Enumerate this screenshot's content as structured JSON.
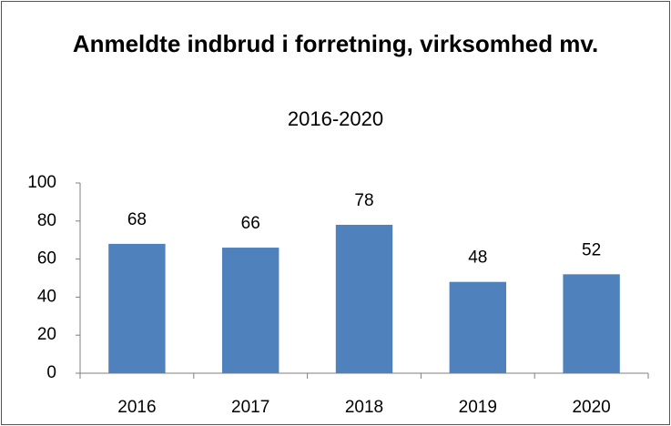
{
  "chart_data": {
    "type": "bar",
    "title": "Anmeldte indbrud i forretning, virksomhed mv.",
    "subtitle": "2016-2020",
    "categories": [
      "2016",
      "2017",
      "2018",
      "2019",
      "2020"
    ],
    "values": [
      68,
      66,
      78,
      48,
      52
    ],
    "color": "#4f81bd",
    "ylim": [
      0,
      100
    ],
    "yticks": [
      0,
      20,
      40,
      60,
      80,
      100
    ],
    "grid": false,
    "data_labels": true
  }
}
